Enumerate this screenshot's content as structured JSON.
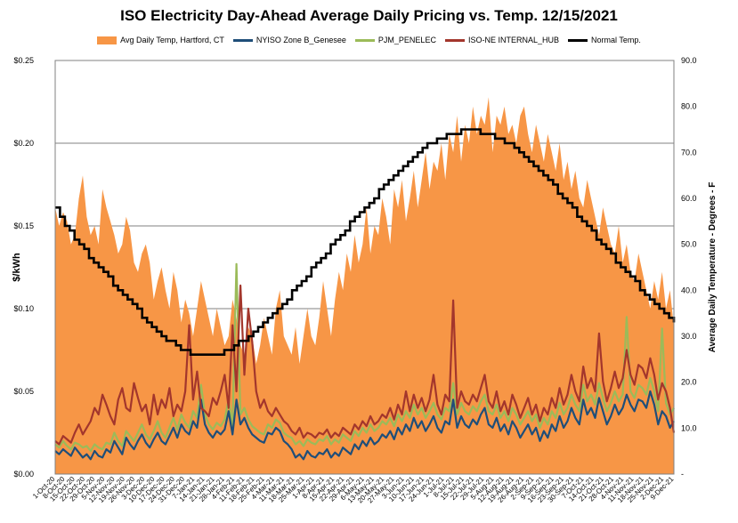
{
  "chart_data": {
    "type": "area",
    "title": "ISO Electricity Day-Ahead Average Daily Pricing vs. Temp. 12/15/2021",
    "ylabel": "$/kWh",
    "y2label": "Average Daily Temperature - Degrees - F",
    "ylim": [
      0,
      0.25
    ],
    "y2lim": [
      0,
      90
    ],
    "yticks": [
      "$0.00",
      "$0.05",
      "$0.10",
      "$0.15",
      "$0.20",
      "$0.25"
    ],
    "y2ticks": [
      "-",
      "10.0",
      "20.0",
      "30.0",
      "40.0",
      "50.0",
      "60.0",
      "70.0",
      "80.0",
      "90.0"
    ],
    "xlabels": [
      "1-Oct-20",
      "8-Oct-20",
      "15-Oct-20",
      "22-Oct-20",
      "29-Oct-20",
      "5-Nov-20",
      "12-Nov-20",
      "19-Nov-20",
      "26-Nov-20",
      "3-Dec-20",
      "10-Dec-20",
      "17-Dec-20",
      "24-Dec-20",
      "31-Dec-20",
      "7-Jan-21",
      "14-Jan-21",
      "21-Jan-21",
      "28-Jan-21",
      "4-Feb-21",
      "11-Feb-21",
      "18-Feb-21",
      "25-Feb-21",
      "4-Mar-21",
      "11-Mar-21",
      "18-Mar-21",
      "25-Mar-21",
      "1-Apr-21",
      "8-Apr-21",
      "15-Apr-21",
      "22-Apr-21",
      "29-Apr-21",
      "6-May-21",
      "13-May-21",
      "20-May-21",
      "27-May-21",
      "3-Jun-21",
      "10-Jun-21",
      "17-Jun-21",
      "24-Jun-21",
      "1-Jul-21",
      "8-Jul-21",
      "15-Jul-21",
      "22-Jul-21",
      "29-Jul-21",
      "5-Aug-21",
      "12-Aug-21",
      "19-Aug-21",
      "26-Aug-21",
      "2-Sep-21",
      "9-Sep-21",
      "16-Sep-21",
      "23-Sep-21",
      "30-Sep-21",
      "7-Oct-21",
      "14-Oct-21",
      "21-Oct-21",
      "28-Oct-21",
      "4-Nov-21",
      "11-Nov-21",
      "18-Nov-21",
      "25-Nov-21",
      "2-Dec-21",
      "9-Dec-21"
    ],
    "grid": true,
    "legend_position": "top",
    "colors": {
      "temp_area": "#F79646",
      "nyiso": "#1F4E79",
      "pjm": "#9BBB59",
      "isone": "#A3362C",
      "normal": "#000000",
      "grid": "#808080"
    },
    "series": [
      {
        "name": "Avg Daily Temp, Hartford, CT",
        "axis": "right",
        "kind": "area",
        "values": [
          58,
          54,
          57,
          55,
          50,
          52,
          60,
          65,
          56,
          52,
          54,
          50,
          62,
          58,
          55,
          52,
          48,
          50,
          56,
          53,
          46,
          44,
          48,
          50,
          46,
          38,
          42,
          45,
          40,
          36,
          44,
          40,
          33,
          38,
          35,
          30,
          36,
          42,
          38,
          34,
          30,
          36,
          32,
          28,
          30,
          38,
          34,
          28,
          26,
          32,
          30,
          24,
          28,
          34,
          30,
          26,
          36,
          40,
          30,
          28,
          26,
          32,
          24,
          30,
          36,
          30,
          28,
          34,
          42,
          36,
          30,
          38,
          44,
          40,
          48,
          44,
          52,
          46,
          50,
          58,
          48,
          54,
          52,
          60,
          56,
          50,
          62,
          58,
          64,
          55,
          60,
          66,
          58,
          64,
          70,
          62,
          68,
          66,
          72,
          64,
          74,
          70,
          78,
          68,
          76,
          72,
          80,
          74,
          78,
          76,
          82,
          70,
          78,
          76,
          80,
          74,
          76,
          72,
          78,
          80,
          74,
          70,
          76,
          72,
          68,
          74,
          70,
          66,
          72,
          64,
          68,
          62,
          66,
          60,
          58,
          64,
          60,
          56,
          52,
          58,
          54,
          50,
          48,
          54,
          46,
          50,
          44,
          42,
          48,
          44,
          40,
          36,
          42,
          38,
          44,
          36,
          40,
          32
        ]
      },
      {
        "name": "NYISO Zone B_Genesee",
        "axis": "left",
        "kind": "line",
        "values": [
          0.014,
          0.012,
          0.015,
          0.013,
          0.011,
          0.016,
          0.013,
          0.01,
          0.012,
          0.009,
          0.014,
          0.011,
          0.01,
          0.015,
          0.013,
          0.02,
          0.016,
          0.012,
          0.022,
          0.018,
          0.015,
          0.02,
          0.024,
          0.019,
          0.016,
          0.021,
          0.025,
          0.02,
          0.018,
          0.023,
          0.028,
          0.022,
          0.03,
          0.026,
          0.024,
          0.032,
          0.028,
          0.045,
          0.03,
          0.025,
          0.022,
          0.026,
          0.024,
          0.027,
          0.038,
          0.024,
          0.045,
          0.03,
          0.034,
          0.028,
          0.024,
          0.022,
          0.02,
          0.019,
          0.025,
          0.024,
          0.028,
          0.026,
          0.02,
          0.018,
          0.015,
          0.01,
          0.012,
          0.009,
          0.014,
          0.011,
          0.01,
          0.013,
          0.012,
          0.015,
          0.01,
          0.013,
          0.011,
          0.016,
          0.014,
          0.012,
          0.018,
          0.015,
          0.02,
          0.017,
          0.022,
          0.018,
          0.02,
          0.024,
          0.022,
          0.026,
          0.021,
          0.028,
          0.024,
          0.03,
          0.026,
          0.034,
          0.028,
          0.032,
          0.026,
          0.03,
          0.035,
          0.028,
          0.025,
          0.032,
          0.03,
          0.045,
          0.028,
          0.035,
          0.03,
          0.028,
          0.033,
          0.03,
          0.036,
          0.04,
          0.03,
          0.028,
          0.034,
          0.026,
          0.03,
          0.024,
          0.032,
          0.028,
          0.022,
          0.026,
          0.03,
          0.024,
          0.028,
          0.02,
          0.026,
          0.022,
          0.03,
          0.026,
          0.035,
          0.028,
          0.032,
          0.04,
          0.034,
          0.03,
          0.045,
          0.036,
          0.04,
          0.034,
          0.046,
          0.038,
          0.03,
          0.035,
          0.042,
          0.036,
          0.04,
          0.048,
          0.042,
          0.038,
          0.045,
          0.044,
          0.04,
          0.05,
          0.042,
          0.03,
          0.038,
          0.035,
          0.028,
          0.032
        ]
      },
      {
        "name": "PJM_PENELEC",
        "axis": "left",
        "kind": "line",
        "values": [
          0.018,
          0.016,
          0.02,
          0.017,
          0.015,
          0.019,
          0.018,
          0.016,
          0.017,
          0.014,
          0.018,
          0.016,
          0.015,
          0.019,
          0.018,
          0.025,
          0.02,
          0.017,
          0.026,
          0.023,
          0.02,
          0.025,
          0.03,
          0.024,
          0.021,
          0.026,
          0.032,
          0.025,
          0.022,
          0.028,
          0.034,
          0.027,
          0.036,
          0.031,
          0.028,
          0.038,
          0.034,
          0.054,
          0.036,
          0.03,
          0.027,
          0.031,
          0.029,
          0.033,
          0.045,
          0.029,
          0.127,
          0.036,
          0.04,
          0.033,
          0.029,
          0.027,
          0.025,
          0.024,
          0.03,
          0.028,
          0.033,
          0.031,
          0.025,
          0.023,
          0.022,
          0.018,
          0.02,
          0.017,
          0.021,
          0.019,
          0.018,
          0.021,
          0.02,
          0.023,
          0.018,
          0.021,
          0.019,
          0.024,
          0.022,
          0.02,
          0.026,
          0.023,
          0.028,
          0.025,
          0.03,
          0.026,
          0.028,
          0.032,
          0.03,
          0.034,
          0.029,
          0.036,
          0.032,
          0.038,
          0.034,
          0.042,
          0.036,
          0.04,
          0.034,
          0.038,
          0.043,
          0.036,
          0.033,
          0.04,
          0.038,
          0.055,
          0.036,
          0.043,
          0.038,
          0.036,
          0.041,
          0.038,
          0.044,
          0.048,
          0.038,
          0.036,
          0.042,
          0.034,
          0.038,
          0.032,
          0.04,
          0.036,
          0.03,
          0.034,
          0.038,
          0.032,
          0.036,
          0.028,
          0.034,
          0.03,
          0.038,
          0.034,
          0.043,
          0.036,
          0.04,
          0.048,
          0.042,
          0.038,
          0.054,
          0.044,
          0.048,
          0.042,
          0.055,
          0.046,
          0.038,
          0.043,
          0.05,
          0.044,
          0.048,
          0.095,
          0.05,
          0.046,
          0.054,
          0.052,
          0.048,
          0.058,
          0.05,
          0.038,
          0.088,
          0.043,
          0.036,
          0.04
        ]
      },
      {
        "name": "ISO-NE INTERNAL_HUB",
        "axis": "left",
        "kind": "line",
        "values": [
          0.02,
          0.018,
          0.023,
          0.021,
          0.019,
          0.025,
          0.03,
          0.024,
          0.028,
          0.032,
          0.04,
          0.036,
          0.048,
          0.042,
          0.035,
          0.03,
          0.045,
          0.052,
          0.04,
          0.038,
          0.055,
          0.046,
          0.038,
          0.042,
          0.03,
          0.048,
          0.036,
          0.045,
          0.04,
          0.052,
          0.035,
          0.042,
          0.038,
          0.05,
          0.09,
          0.045,
          0.062,
          0.04,
          0.038,
          0.035,
          0.046,
          0.042,
          0.05,
          0.06,
          0.04,
          0.09,
          0.05,
          0.114,
          0.06,
          0.1,
          0.08,
          0.05,
          0.04,
          0.045,
          0.038,
          0.035,
          0.04,
          0.036,
          0.032,
          0.03,
          0.026,
          0.024,
          0.028,
          0.022,
          0.025,
          0.024,
          0.022,
          0.025,
          0.024,
          0.027,
          0.022,
          0.025,
          0.023,
          0.028,
          0.026,
          0.024,
          0.03,
          0.027,
          0.032,
          0.029,
          0.035,
          0.03,
          0.032,
          0.036,
          0.034,
          0.04,
          0.033,
          0.042,
          0.036,
          0.05,
          0.038,
          0.048,
          0.04,
          0.046,
          0.038,
          0.045,
          0.06,
          0.042,
          0.036,
          0.048,
          0.044,
          0.105,
          0.04,
          0.05,
          0.044,
          0.042,
          0.048,
          0.044,
          0.052,
          0.06,
          0.044,
          0.04,
          0.05,
          0.038,
          0.044,
          0.036,
          0.048,
          0.042,
          0.034,
          0.04,
          0.046,
          0.036,
          0.042,
          0.032,
          0.04,
          0.036,
          0.046,
          0.04,
          0.052,
          0.042,
          0.048,
          0.06,
          0.05,
          0.044,
          0.065,
          0.052,
          0.058,
          0.05,
          0.085,
          0.056,
          0.044,
          0.052,
          0.062,
          0.052,
          0.058,
          0.075,
          0.06,
          0.054,
          0.066,
          0.064,
          0.058,
          0.07,
          0.06,
          0.045,
          0.055,
          0.05,
          0.04,
          0.025
        ]
      },
      {
        "name": "Normal Temp.",
        "axis": "right",
        "kind": "line",
        "values": [
          58,
          56,
          54,
          53,
          51,
          50,
          49,
          47,
          46,
          45,
          44,
          43,
          41,
          40,
          39,
          38,
          37,
          36,
          34,
          33,
          32,
          31,
          30,
          29,
          29,
          28,
          27,
          27,
          26,
          26,
          26,
          26,
          26,
          26,
          26,
          27,
          27,
          28,
          29,
          29,
          30,
          31,
          32,
          33,
          34,
          35,
          36,
          37,
          38,
          40,
          41,
          42,
          43,
          45,
          46,
          47,
          48,
          50,
          51,
          52,
          53,
          55,
          56,
          57,
          58,
          59,
          60,
          62,
          63,
          64,
          65,
          66,
          67,
          68,
          69,
          70,
          71,
          72,
          72,
          73,
          73,
          74,
          74,
          74,
          75,
          75,
          75,
          75,
          74,
          74,
          74,
          73,
          73,
          72,
          72,
          71,
          70,
          69,
          68,
          67,
          66,
          65,
          64,
          63,
          61,
          60,
          59,
          58,
          56,
          55,
          54,
          53,
          51,
          50,
          49,
          48,
          46,
          45,
          44,
          43,
          42,
          40,
          39,
          38,
          37,
          36,
          35,
          34,
          33
        ]
      }
    ]
  }
}
